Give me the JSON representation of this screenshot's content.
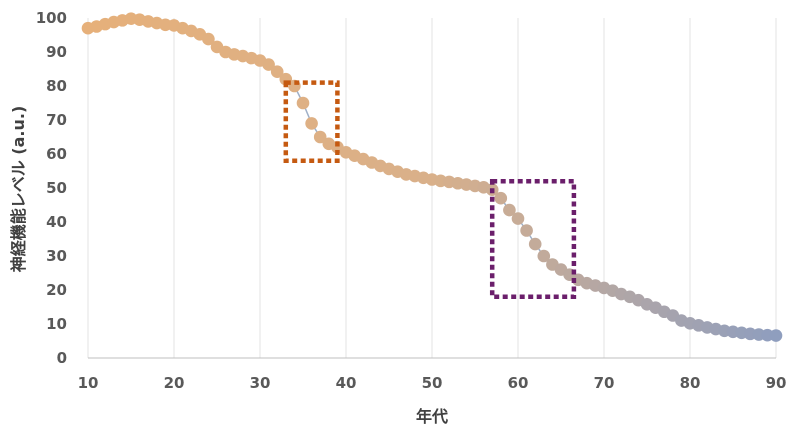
{
  "chart_data": {
    "type": "scatter",
    "title": "",
    "xlabel": "年代",
    "ylabel": "神経機能レベル (a.u.)",
    "xlim": [
      10,
      90
    ],
    "ylim": [
      0,
      100
    ],
    "xticks": [
      10,
      20,
      30,
      40,
      50,
      60,
      70,
      80,
      90
    ],
    "yticks": [
      0,
      10,
      20,
      30,
      40,
      50,
      60,
      70,
      80,
      90,
      100
    ],
    "grid": "vertical",
    "legend": "none",
    "colors": {
      "early": "#e6b07a",
      "mid": "#d9b08a",
      "late": "#8f9ebe",
      "line": "#9fb0c8",
      "box1": "#c55a11",
      "box2": "#6b1f6b"
    },
    "series": [
      {
        "x": [
          10,
          11,
          12,
          13,
          14,
          15,
          16,
          17,
          18,
          19,
          20,
          21,
          22,
          23,
          24,
          25,
          26,
          27,
          28,
          29,
          30,
          31,
          32,
          33,
          34,
          35,
          36,
          37,
          38,
          39,
          40,
          41,
          42,
          43,
          44,
          45,
          46,
          47,
          48,
          49,
          50,
          51,
          52,
          53,
          54,
          55,
          56,
          57,
          58,
          59,
          60,
          61,
          62,
          63,
          64,
          65,
          66,
          67,
          68,
          69,
          70,
          71,
          72,
          73,
          74,
          75,
          76,
          77,
          78,
          79,
          80,
          81,
          82,
          83,
          84,
          85,
          86,
          87,
          88,
          89,
          90
        ],
        "y": [
          97,
          97.5,
          98.2,
          98.8,
          99.3,
          99.8,
          99.5,
          99,
          98.5,
          98,
          97.8,
          97,
          96.2,
          95.2,
          93.8,
          91.5,
          90,
          89.3,
          88.8,
          88.2,
          87.5,
          86.3,
          84.2,
          82,
          80,
          75,
          69,
          65,
          63,
          62,
          60.5,
          59.5,
          58.5,
          57.5,
          56.5,
          55.6,
          54.8,
          54,
          53.5,
          53,
          52.5,
          52.1,
          51.8,
          51.4,
          51,
          50.6,
          50.2,
          49.5,
          47,
          43.5,
          41,
          37.5,
          33.5,
          30,
          27.5,
          26,
          24.5,
          23,
          22,
          21.3,
          20.6,
          19.8,
          18.8,
          18,
          17,
          15.8,
          14.8,
          13.6,
          12.5,
          11,
          10.2,
          9.6,
          9,
          8.5,
          8,
          7.7,
          7.4,
          7.1,
          6.9,
          6.7,
          6.6
        ]
      }
    ],
    "highlight_boxes": [
      {
        "x_range": [
          33,
          39
        ],
        "y_range": [
          58,
          81
        ],
        "color": "box1"
      },
      {
        "x_range": [
          57,
          66.5
        ],
        "y_range": [
          18,
          52
        ],
        "color": "box2"
      }
    ]
  }
}
